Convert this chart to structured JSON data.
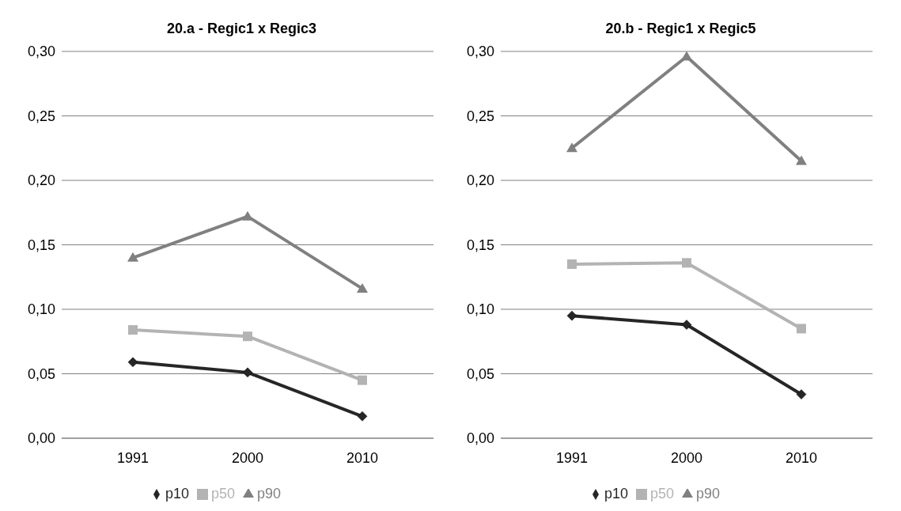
{
  "chart_data": [
    {
      "type": "line",
      "title": "20.a - Regic1 x Regic3",
      "categories": [
        "1991",
        "2000",
        "2010"
      ],
      "ylim": [
        0,
        0.3
      ],
      "yticks": [
        {
          "value": 0,
          "label": "0,00"
        },
        {
          "value": 0.05,
          "label": "0,05"
        },
        {
          "value": 0.1,
          "label": "0,10"
        },
        {
          "value": 0.15,
          "label": "0,15"
        },
        {
          "value": 0.2,
          "label": "0,20"
        },
        {
          "value": 0.25,
          "label": "0,25"
        },
        {
          "value": 0.3,
          "label": "0,30"
        }
      ],
      "grid": "y",
      "legend": "bottom",
      "series": [
        {
          "name": "p10",
          "color": "#262626",
          "marker": "diamond",
          "values": [
            0.059,
            0.051,
            0.017
          ]
        },
        {
          "name": "p50",
          "color": "#b3b3b3",
          "marker": "square",
          "values": [
            0.084,
            0.079,
            0.045
          ]
        },
        {
          "name": "p90",
          "color": "#808080",
          "marker": "triangle",
          "values": [
            0.14,
            0.172,
            0.116
          ]
        }
      ]
    },
    {
      "type": "line",
      "title": "20.b - Regic1 x Regic5",
      "categories": [
        "1991",
        "2000",
        "2010"
      ],
      "ylim": [
        0,
        0.3
      ],
      "yticks": [
        {
          "value": 0,
          "label": "0,00"
        },
        {
          "value": 0.05,
          "label": "0,05"
        },
        {
          "value": 0.1,
          "label": "0,10"
        },
        {
          "value": 0.15,
          "label": "0,15"
        },
        {
          "value": 0.2,
          "label": "0,20"
        },
        {
          "value": 0.25,
          "label": "0,25"
        },
        {
          "value": 0.3,
          "label": "0,30"
        }
      ],
      "grid": "y",
      "legend": "bottom",
      "series": [
        {
          "name": "p10",
          "color": "#262626",
          "marker": "diamond",
          "values": [
            0.095,
            0.088,
            0.034
          ]
        },
        {
          "name": "p50",
          "color": "#b3b3b3",
          "marker": "square",
          "values": [
            0.135,
            0.136,
            0.085
          ]
        },
        {
          "name": "p90",
          "color": "#808080",
          "marker": "triangle",
          "values": [
            0.225,
            0.296,
            0.215
          ]
        }
      ]
    }
  ]
}
